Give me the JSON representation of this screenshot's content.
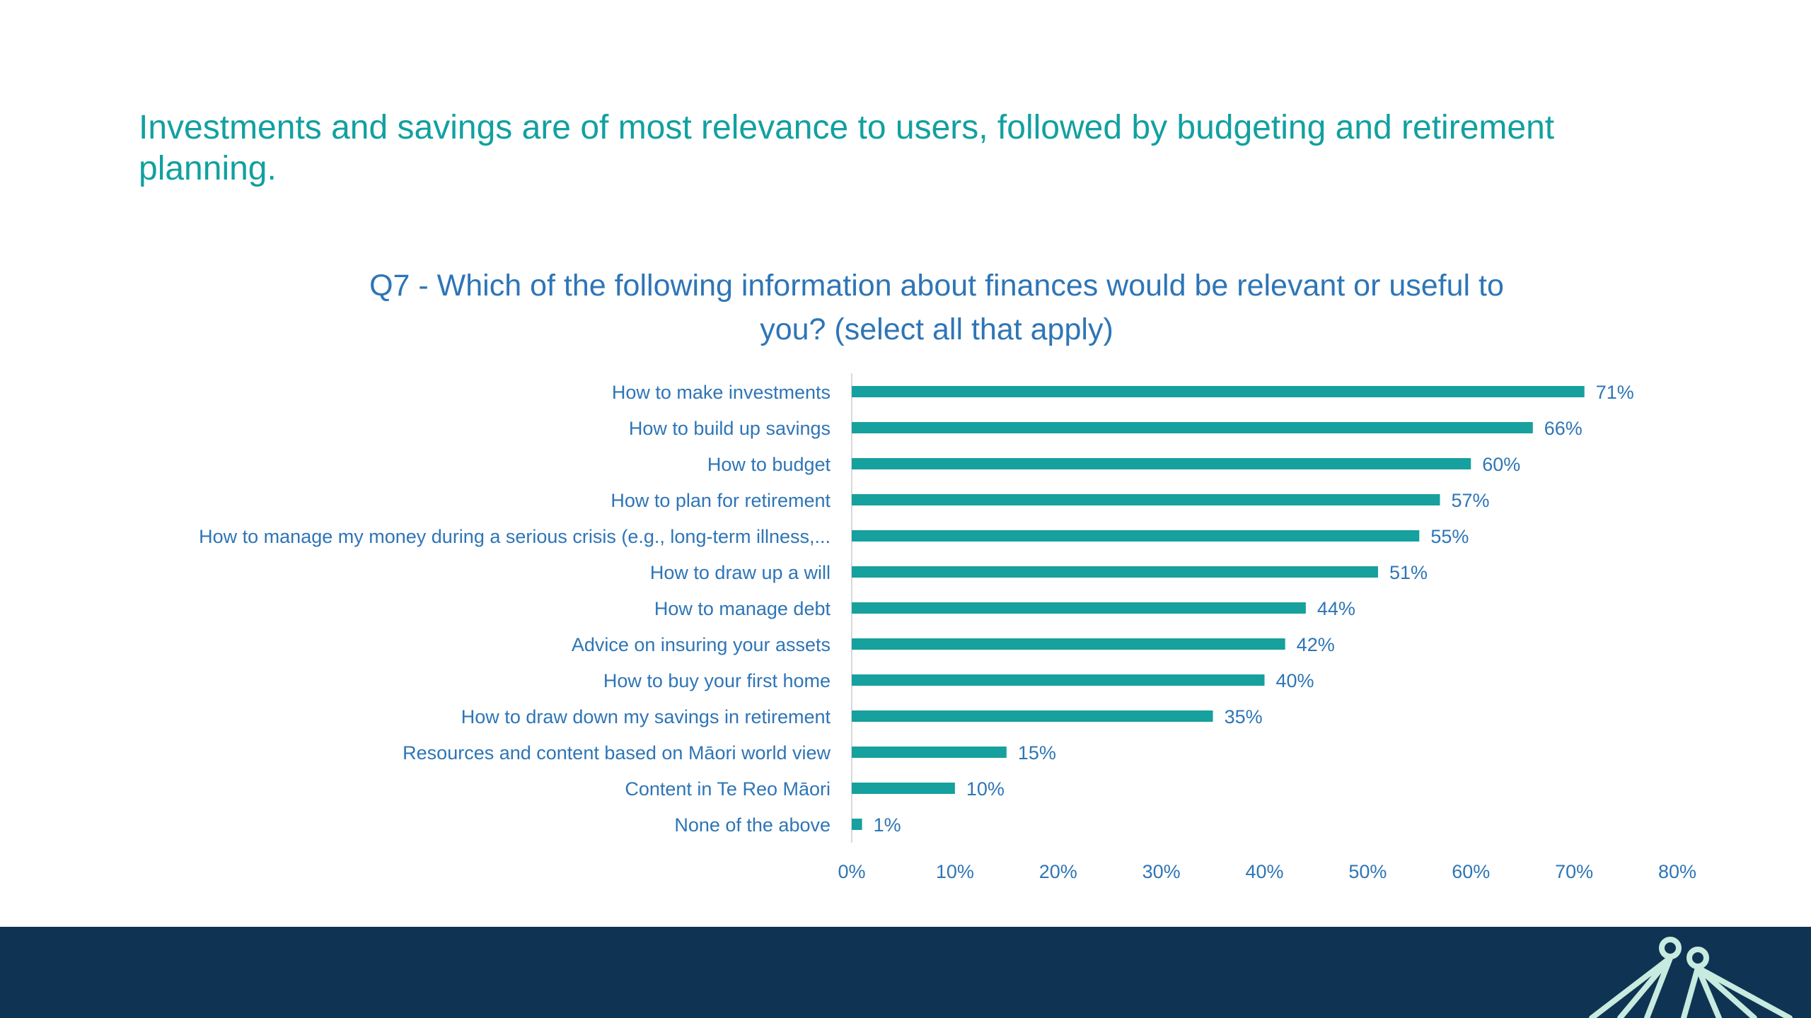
{
  "slide": {
    "headline": "Investments and savings are of most relevance to users, followed by budgeting and retirement planning."
  },
  "colors": {
    "headline": "#12a0a0",
    "chart_text": "#2e75b6",
    "bar": "#16a09e",
    "footer": "#0f3453",
    "logo": "#c8ebe0"
  },
  "logo": {
    "icon": "stylized-roof-logo-icon"
  },
  "chart_data": {
    "type": "bar",
    "orientation": "horizontal",
    "title_lines": [
      "Q7 - Which of the following information about finances would be relevant or useful to",
      "you? (select all that apply)"
    ],
    "categories": [
      "How to make investments",
      "How to build up savings",
      "How to budget",
      "How to plan for retirement",
      "How to manage my money during a serious crisis (e.g., long-term illness,...",
      "How to draw up a will",
      "How to manage debt",
      "Advice on insuring your assets",
      "How to buy your first home",
      "How to draw down my savings in retirement",
      "Resources and content based on Māori world view",
      "Content in Te Reo Māori",
      "None of the above"
    ],
    "values": [
      71,
      66,
      60,
      57,
      55,
      51,
      44,
      42,
      40,
      35,
      15,
      10,
      1
    ],
    "data_labels": [
      "71%",
      "66%",
      "60%",
      "57%",
      "55%",
      "51%",
      "44%",
      "42%",
      "40%",
      "35%",
      "15%",
      "10%",
      "1%"
    ],
    "xticks": [
      "0%",
      "10%",
      "20%",
      "30%",
      "40%",
      "50%",
      "60%",
      "70%",
      "80%"
    ],
    "xlim": [
      0,
      80
    ],
    "grid": false,
    "legend": "none"
  }
}
